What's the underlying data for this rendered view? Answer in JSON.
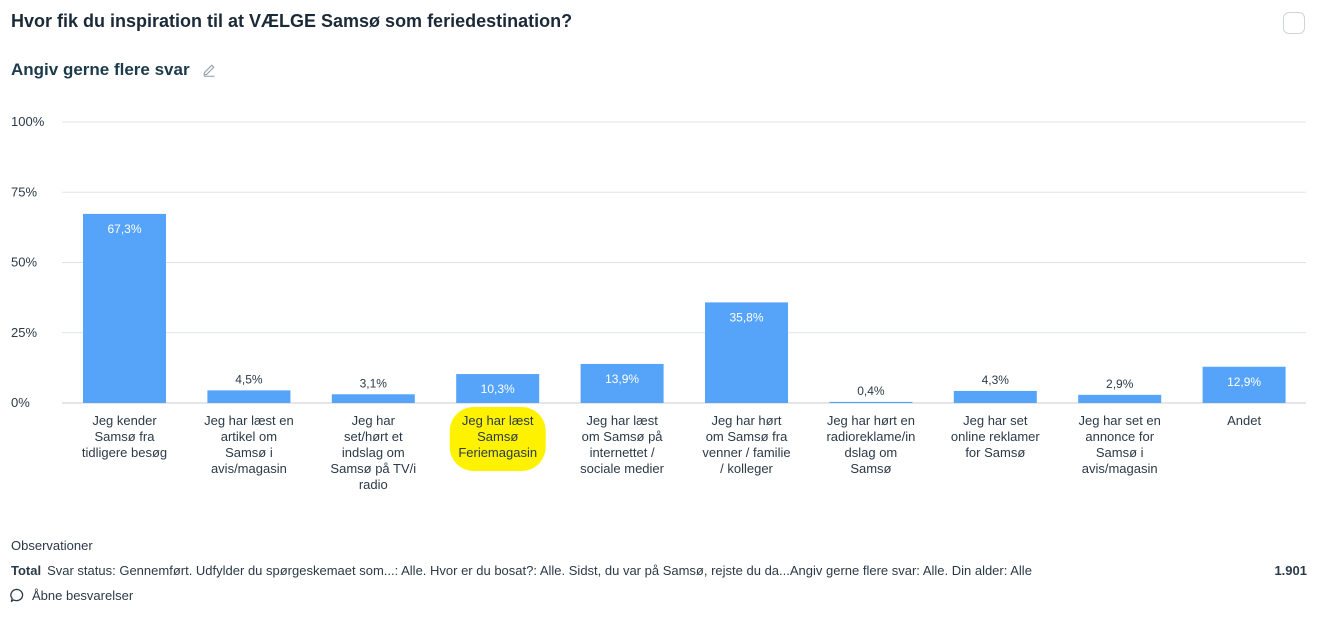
{
  "header": {
    "title": "Hvor fik du inspiration til at VÆLGE Samsø som feriedestination?",
    "subtitle": "Angiv gerne flere svar",
    "icons": {
      "edit": "pencil-icon",
      "select": "checkbox"
    }
  },
  "chart_data": {
    "type": "bar",
    "categories": [
      "Jeg kender Samsø fra tidligere besøg",
      "Jeg har læst en artikel om Samsø i avis/magasin",
      "Jeg har set/hørt et indslag om Samsø på TV/i radio",
      "Jeg har læst Samsø Feriemagasin",
      "Jeg har læst om Samsø på internettet / sociale medier",
      "Jeg har hørt om Samsø fra venner / familie / kolleger",
      "Jeg har hørt en radioreklame/indslag om Samsø",
      "Jeg har set online reklamer for Samsø",
      "Jeg har set en annonce for Samsø i avis/magasin",
      "Andet"
    ],
    "category_lines": [
      [
        "Jeg kender",
        "Samsø fra",
        "tidligere besøg"
      ],
      [
        "Jeg har læst en",
        "artikel om",
        "Samsø i",
        "avis/magasin"
      ],
      [
        "Jeg har",
        "set/hørt et",
        "indslag om",
        "Samsø på TV/i",
        "radio"
      ],
      [
        "Jeg har læst",
        "Samsø",
        "Feriemagasin"
      ],
      [
        "Jeg har læst",
        "om Samsø på",
        "internettet /",
        "sociale medier"
      ],
      [
        "Jeg har hørt",
        "om Samsø fra",
        "venner / familie",
        "/ kolleger"
      ],
      [
        "Jeg har hørt en",
        "radioreklame/in",
        "dslag om",
        "Samsø"
      ],
      [
        "Jeg har set",
        "online reklamer",
        "for Samsø"
      ],
      [
        "Jeg har set en",
        "annonce for",
        "Samsø i",
        "avis/magasin"
      ],
      [
        "Andet"
      ]
    ],
    "values": [
      67.3,
      4.5,
      3.1,
      10.3,
      13.9,
      35.8,
      0.4,
      4.3,
      2.9,
      12.9
    ],
    "value_labels": [
      "67,3%",
      "4,5%",
      "3,1%",
      "10,3%",
      "13,9%",
      "35,8%",
      "0,4%",
      "4,3%",
      "2,9%",
      "12,9%"
    ],
    "ylim": [
      0,
      100
    ],
    "yticks": [
      0,
      25,
      50,
      75,
      100
    ],
    "ytick_labels": [
      "0%",
      "25%",
      "50%",
      "75%",
      "100%"
    ],
    "highlighted_category_index": 3,
    "grid": true,
    "colors": {
      "bar": "#56a3fa",
      "grid": "#dfe3e8",
      "highlight": "#fff200",
      "label_inside": "#ffffff",
      "label_outside": "#2b3a48"
    }
  },
  "footer": {
    "observations_label": "Observationer",
    "total_label": "Total",
    "filter_text": "Svar status: Gennemført. Udfylder du spørgeskemaet som...: Alle. Hvor er du bosat?: Alle. Sidst, du var på Samsø, rejste du da...Angiv gerne flere svar: Alle. Din alder: Alle",
    "total_value": "1.901",
    "open_answers_label": "Åbne besvarelser",
    "icons": {
      "open_answers": "chat-bubble-icon"
    }
  }
}
